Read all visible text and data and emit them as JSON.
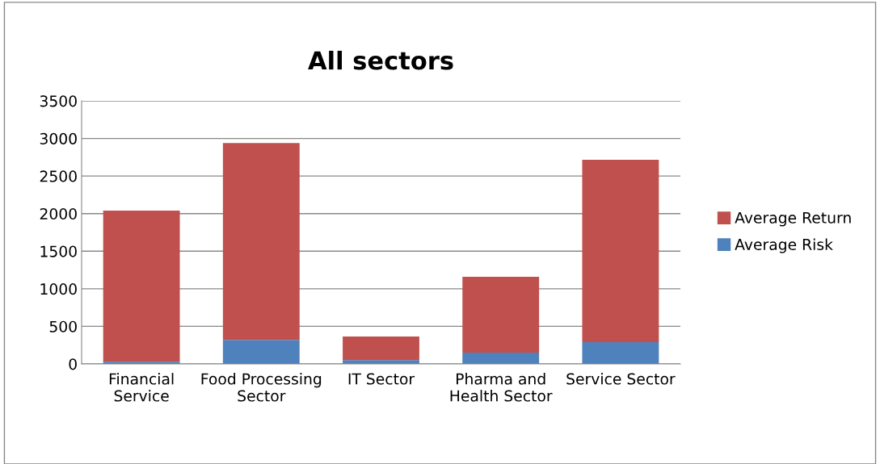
{
  "chart_data": {
    "type": "bar",
    "title": "All sectors",
    "stacked": true,
    "categories": [
      "Financial Service",
      "Food Processing Sector",
      "IT Sector",
      "Pharma and Health Sector",
      "Service Sector"
    ],
    "series": [
      {
        "name": "Average Risk",
        "color": "#4f81bd",
        "values": [
          30,
          320,
          50,
          150,
          290
        ]
      },
      {
        "name": "Average Return",
        "color": "#c0504d",
        "values": [
          2010,
          2620,
          315,
          1010,
          2427
        ]
      }
    ],
    "ylim": [
      0,
      3500
    ],
    "yticks": [
      0,
      500,
      1000,
      1500,
      2000,
      2500,
      3000,
      3500
    ],
    "grid": "y",
    "legend": "right"
  }
}
